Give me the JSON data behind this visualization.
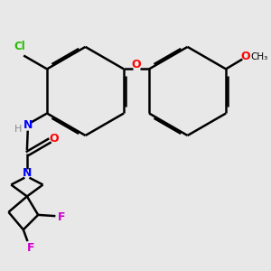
{
  "background_color": "#e8e8e8",
  "atom_colors": {
    "C": "#000000",
    "N": "#0000ff",
    "O": "#ff0000",
    "F": "#cc00cc",
    "Cl": "#22bb00",
    "H": "#888888"
  },
  "bond_color": "#000000",
  "figsize": [
    3.0,
    3.0
  ],
  "dpi": 100
}
